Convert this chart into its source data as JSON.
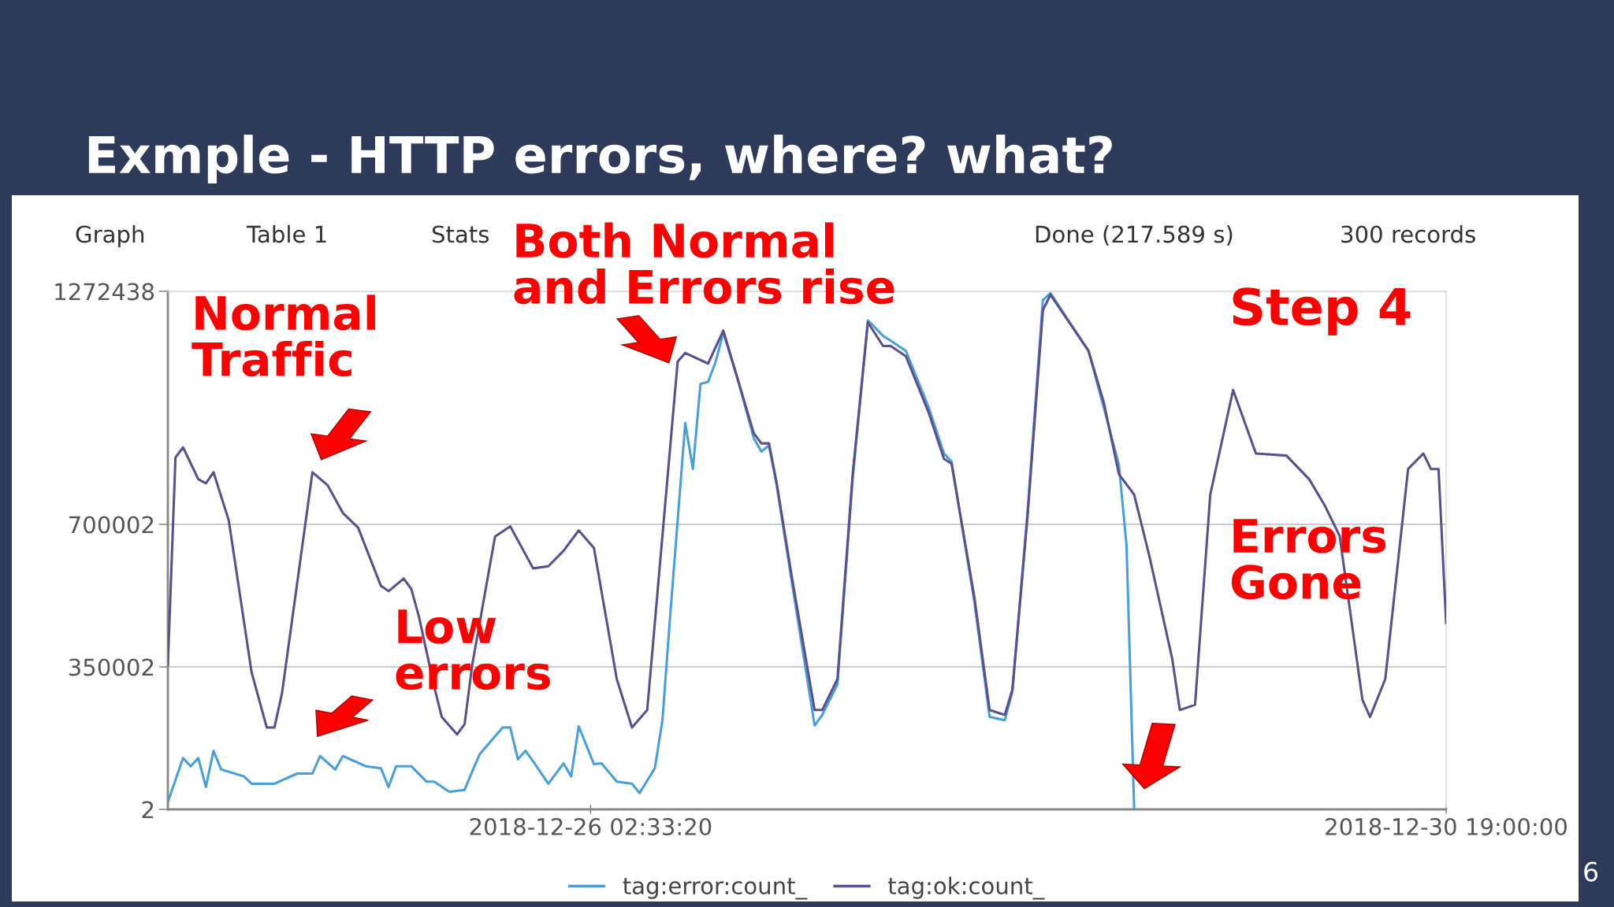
{
  "chart_data": {
    "type": "line",
    "title": "Exmple - HTTP errors, where? what?",
    "xlim": [
      "2018-12-23T19:00",
      "2018-12-30T19:00"
    ],
    "xticks": [
      {
        "value": "2018-12-26T02:33:20",
        "label": "2018-12-26 02:33:20"
      },
      {
        "value": "2018-12-30T19:00:00",
        "label": "2018-12-30 19:00:00"
      }
    ],
    "ylim": [
      2,
      1272438
    ],
    "yticks": [
      2,
      350002,
      700002,
      1272438
    ],
    "grid": "y",
    "legend": "bottom",
    "series": [
      {
        "name": "tag:error:count_",
        "color": "#4a9fd8",
        "x": [
          "2018-12-23T19:00",
          "2018-12-23T21:00",
          "2018-12-23T22:00",
          "2018-12-23T23:00",
          "2018-12-24T00:00",
          "2018-12-24T01:00",
          "2018-12-24T02:00",
          "2018-12-24T05:00",
          "2018-12-24T06:00",
          "2018-12-24T09:00",
          "2018-12-24T12:00",
          "2018-12-24T14:00",
          "2018-12-24T15:00",
          "2018-12-24T17:00",
          "2018-12-24T18:00",
          "2018-12-24T21:00",
          "2018-12-24T23:00",
          "2018-12-25T00:00",
          "2018-12-25T01:00",
          "2018-12-25T03:00",
          "2018-12-25T05:00",
          "2018-12-25T06:00",
          "2018-12-25T08:00",
          "2018-12-25T10:00",
          "2018-12-25T11:00",
          "2018-12-25T12:00",
          "2018-12-25T15:00",
          "2018-12-25T16:00",
          "2018-12-25T17:00",
          "2018-12-25T18:00",
          "2018-12-25T19:00",
          "2018-12-25T21:00",
          "2018-12-25T23:00",
          "2018-12-26T00:00",
          "2018-12-26T01:00",
          "2018-12-26T03:00",
          "2018-12-26T04:00",
          "2018-12-26T06:00",
          "2018-12-26T08:00",
          "2018-12-26T09:00",
          "2018-12-26T11:00",
          "2018-12-26T12:00",
          "2018-12-26T13:00",
          "2018-12-26T15:00",
          "2018-12-26T16:00",
          "2018-12-26T17:00",
          "2018-12-26T18:00",
          "2018-12-26T19:00",
          "2018-12-26T20:00",
          "2018-12-26T22:00",
          "2018-12-27T00:00",
          "2018-12-27T01:00",
          "2018-12-27T02:00",
          "2018-12-27T03:00",
          "2018-12-27T05:00",
          "2018-12-27T08:00",
          "2018-12-27T09:00",
          "2018-12-27T11:00",
          "2018-12-27T13:00",
          "2018-12-27T15:00",
          "2018-12-27T17:00",
          "2018-12-27T18:00",
          "2018-12-27T20:00",
          "2018-12-27T23:00",
          "2018-12-28T01:00",
          "2018-12-28T02:00",
          "2018-12-28T05:00",
          "2018-12-28T07:00",
          "2018-12-28T09:00",
          "2018-12-28T10:00",
          "2018-12-28T12:00",
          "2018-12-28T14:00",
          "2018-12-28T15:00",
          "2018-12-28T20:00",
          "2018-12-28T22:00",
          "2018-12-29T00:00",
          "2018-12-29T01:00",
          "2018-12-29T02:00"
        ],
        "values": [
          18000,
          126000,
          106000,
          126000,
          55000,
          144000,
          98000,
          81000,
          63000,
          63000,
          88000,
          88000,
          131000,
          98000,
          131000,
          106000,
          101000,
          55000,
          106000,
          106000,
          68000,
          68000,
          43000,
          48000,
          93000,
          136000,
          201000,
          201000,
          123000,
          144000,
          118000,
          63000,
          113000,
          81000,
          204000,
          111000,
          113000,
          68000,
          63000,
          40000,
          101000,
          219000,
          471000,
          949000,
          836000,
          1045000,
          1050000,
          1100000,
          1171000,
          1050000,
          912000,
          879000,
          894000,
          798000,
          559000,
          206000,
          232000,
          307000,
          811000,
          1201000,
          1163000,
          1151000,
          1126000,
          987000,
          874000,
          854000,
          509000,
          227000,
          219000,
          290000,
          735000,
          1251000,
          1268000,
          1126000,
          987000,
          846000,
          647000,
          2
        ]
      },
      {
        "name": "tag:ok:count_",
        "color": "#5b4f8c",
        "x": [
          "2018-12-23T19:00",
          "2018-12-23T20:00",
          "2018-12-23T21:00",
          "2018-12-23T23:00",
          "2018-12-24T00:00",
          "2018-12-24T01:00",
          "2018-12-24T03:00",
          "2018-12-24T06:00",
          "2018-12-24T08:00",
          "2018-12-24T09:00",
          "2018-12-24T10:00",
          "2018-12-24T13:00",
          "2018-12-24T14:00",
          "2018-12-24T16:00",
          "2018-12-24T18:00",
          "2018-12-24T20:00",
          "2018-12-24T23:00",
          "2018-12-25T00:00",
          "2018-12-25T02:00",
          "2018-12-25T03:00",
          "2018-12-25T04:00",
          "2018-12-25T06:00",
          "2018-12-25T07:00",
          "2018-12-25T09:00",
          "2018-12-25T10:00",
          "2018-12-25T11:00",
          "2018-12-25T14:00",
          "2018-12-25T16:00",
          "2018-12-25T19:00",
          "2018-12-25T21:00",
          "2018-12-25T23:00",
          "2018-12-26T01:00",
          "2018-12-26T03:00",
          "2018-12-26T06:00",
          "2018-12-26T08:00",
          "2018-12-26T10:00",
          "2018-12-26T12:00",
          "2018-12-26T14:00",
          "2018-12-26T15:00",
          "2018-12-26T18:00",
          "2018-12-26T20:00",
          "2018-12-26T22:00",
          "2018-12-27T00:00",
          "2018-12-27T01:00",
          "2018-12-27T02:00",
          "2018-12-27T03:00",
          "2018-12-27T05:00",
          "2018-12-27T08:00",
          "2018-12-27T09:00",
          "2018-12-27T11:00",
          "2018-12-27T13:00",
          "2018-12-27T15:00",
          "2018-12-27T17:00",
          "2018-12-27T18:00",
          "2018-12-27T20:00",
          "2018-12-27T23:00",
          "2018-12-28T01:00",
          "2018-12-28T02:00",
          "2018-12-28T05:00",
          "2018-12-28T07:00",
          "2018-12-28T09:00",
          "2018-12-28T10:00",
          "2018-12-28T12:00",
          "2018-12-28T14:00",
          "2018-12-28T15:00",
          "2018-12-28T20:00",
          "2018-12-28T22:00",
          "2018-12-29T00:00",
          "2018-12-29T02:00",
          "2018-12-29T04:00",
          "2018-12-29T07:00",
          "2018-12-29T08:00",
          "2018-12-29T10:00",
          "2018-12-29T12:00",
          "2018-12-29T15:00",
          "2018-12-29T18:00",
          "2018-12-29T22:00",
          "2018-12-30T01:00",
          "2018-12-30T03:00",
          "2018-12-30T05:00",
          "2018-12-30T08:00",
          "2018-12-30T09:00",
          "2018-12-30T11:00",
          "2018-12-30T14:00",
          "2018-12-30T16:00",
          "2018-12-30T17:00",
          "2018-12-30T18:00",
          "2018-12-30T19:00"
        ],
        "values": [
          355000,
          864000,
          889000,
          811000,
          801000,
          828000,
          710000,
          337000,
          201000,
          201000,
          285000,
          692000,
          828000,
          796000,
          728000,
          692000,
          549000,
          536000,
          567000,
          541000,
          473000,
          302000,
          227000,
          184000,
          209000,
          355000,
          670000,
          695000,
          592000,
          597000,
          635000,
          685000,
          642000,
          320000,
          201000,
          244000,
          672000,
          1100000,
          1121000,
          1095000,
          1176000,
          1050000,
          924000,
          899000,
          899000,
          803000,
          572000,
          244000,
          244000,
          320000,
          823000,
          1196000,
          1138000,
          1138000,
          1113000,
          974000,
          861000,
          849000,
          521000,
          244000,
          232000,
          295000,
          723000,
          1226000,
          1264000,
          1126000,
          1000000,
          823000,
          773000,
          622000,
          370000,
          244000,
          257000,
          773000,
          1030000,
          874000,
          869000,
          811000,
          748000,
          672000,
          269000,
          227000,
          320000,
          836000,
          874000,
          836000,
          836000,
          458000
        ]
      }
    ],
    "annotations": [
      "Graph",
      "Table 1",
      "Stats",
      "Done (217.589 s)",
      "300 records",
      "Normal\nTraffic",
      "Both Normal\nand Errors rise",
      "Low\nerrors",
      "Step 4",
      "Errors\nGone",
      "6"
    ]
  }
}
